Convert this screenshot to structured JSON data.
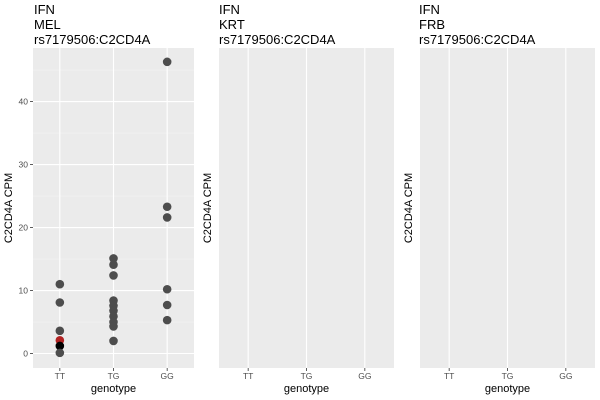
{
  "chart_data": {
    "type": "scatter",
    "panels": [
      {
        "title_lines": [
          "IFN",
          "MEL",
          "rs7179506:C2CD4A"
        ],
        "xlabel": "genotype",
        "ylabel": "C2CD4A CPM",
        "categories": [
          "TT",
          "TG",
          "GG"
        ],
        "yticks": [
          0,
          10,
          20,
          30,
          40
        ],
        "ylim": [
          -2.3,
          48.5
        ],
        "y_tick_labels_visible": true,
        "points": [
          {
            "x": "TT",
            "y": 11.0,
            "color": "#4d4d4d"
          },
          {
            "x": "TT",
            "y": 8.1,
            "color": "#4d4d4d"
          },
          {
            "x": "TT",
            "y": 3.6,
            "color": "#4d4d4d"
          },
          {
            "x": "TT",
            "y": 2.1,
            "color": "#b22222"
          },
          {
            "x": "TT",
            "y": 1.2,
            "color": "#000000"
          },
          {
            "x": "TT",
            "y": 0.1,
            "color": "#4d4d4d"
          },
          {
            "x": "TG",
            "y": 15.1,
            "color": "#4d4d4d"
          },
          {
            "x": "TG",
            "y": 14.1,
            "color": "#4d4d4d"
          },
          {
            "x": "TG",
            "y": 12.4,
            "color": "#4d4d4d"
          },
          {
            "x": "TG",
            "y": 8.4,
            "color": "#4d4d4d"
          },
          {
            "x": "TG",
            "y": 7.6,
            "color": "#4d4d4d"
          },
          {
            "x": "TG",
            "y": 6.8,
            "color": "#4d4d4d"
          },
          {
            "x": "TG",
            "y": 5.9,
            "color": "#4d4d4d"
          },
          {
            "x": "TG",
            "y": 5.0,
            "color": "#4d4d4d"
          },
          {
            "x": "TG",
            "y": 4.3,
            "color": "#4d4d4d"
          },
          {
            "x": "TG",
            "y": 2.0,
            "color": "#4d4d4d"
          },
          {
            "x": "GG",
            "y": 46.3,
            "color": "#4d4d4d"
          },
          {
            "x": "GG",
            "y": 23.3,
            "color": "#4d4d4d"
          },
          {
            "x": "GG",
            "y": 21.6,
            "color": "#4d4d4d"
          },
          {
            "x": "GG",
            "y": 10.2,
            "color": "#4d4d4d"
          },
          {
            "x": "GG",
            "y": 7.7,
            "color": "#4d4d4d"
          },
          {
            "x": "GG",
            "y": 5.3,
            "color": "#4d4d4d"
          }
        ]
      },
      {
        "title_lines": [
          "IFN",
          "KRT",
          "rs7179506:C2CD4A"
        ],
        "xlabel": "genotype",
        "ylabel": "C2CD4A CPM",
        "categories": [
          "TT",
          "TG",
          "GG"
        ],
        "yticks": [],
        "y_tick_labels_visible": false,
        "points": []
      },
      {
        "title_lines": [
          "IFN",
          "FRB",
          "rs7179506:C2CD4A"
        ],
        "xlabel": "genotype",
        "ylabel": "C2CD4A CPM",
        "categories": [
          "TT",
          "TG",
          "GG"
        ],
        "yticks": [],
        "y_tick_labels_visible": false,
        "points": []
      }
    ],
    "colors": {
      "panel_background": "#ebebeb",
      "grid_major": "#ffffff",
      "grid_minor": "#f3f3f3",
      "default_point": "#4d4d4d",
      "highlight_point": "#b22222",
      "selected_point": "#000000"
    },
    "grid": true,
    "legend": "none"
  }
}
